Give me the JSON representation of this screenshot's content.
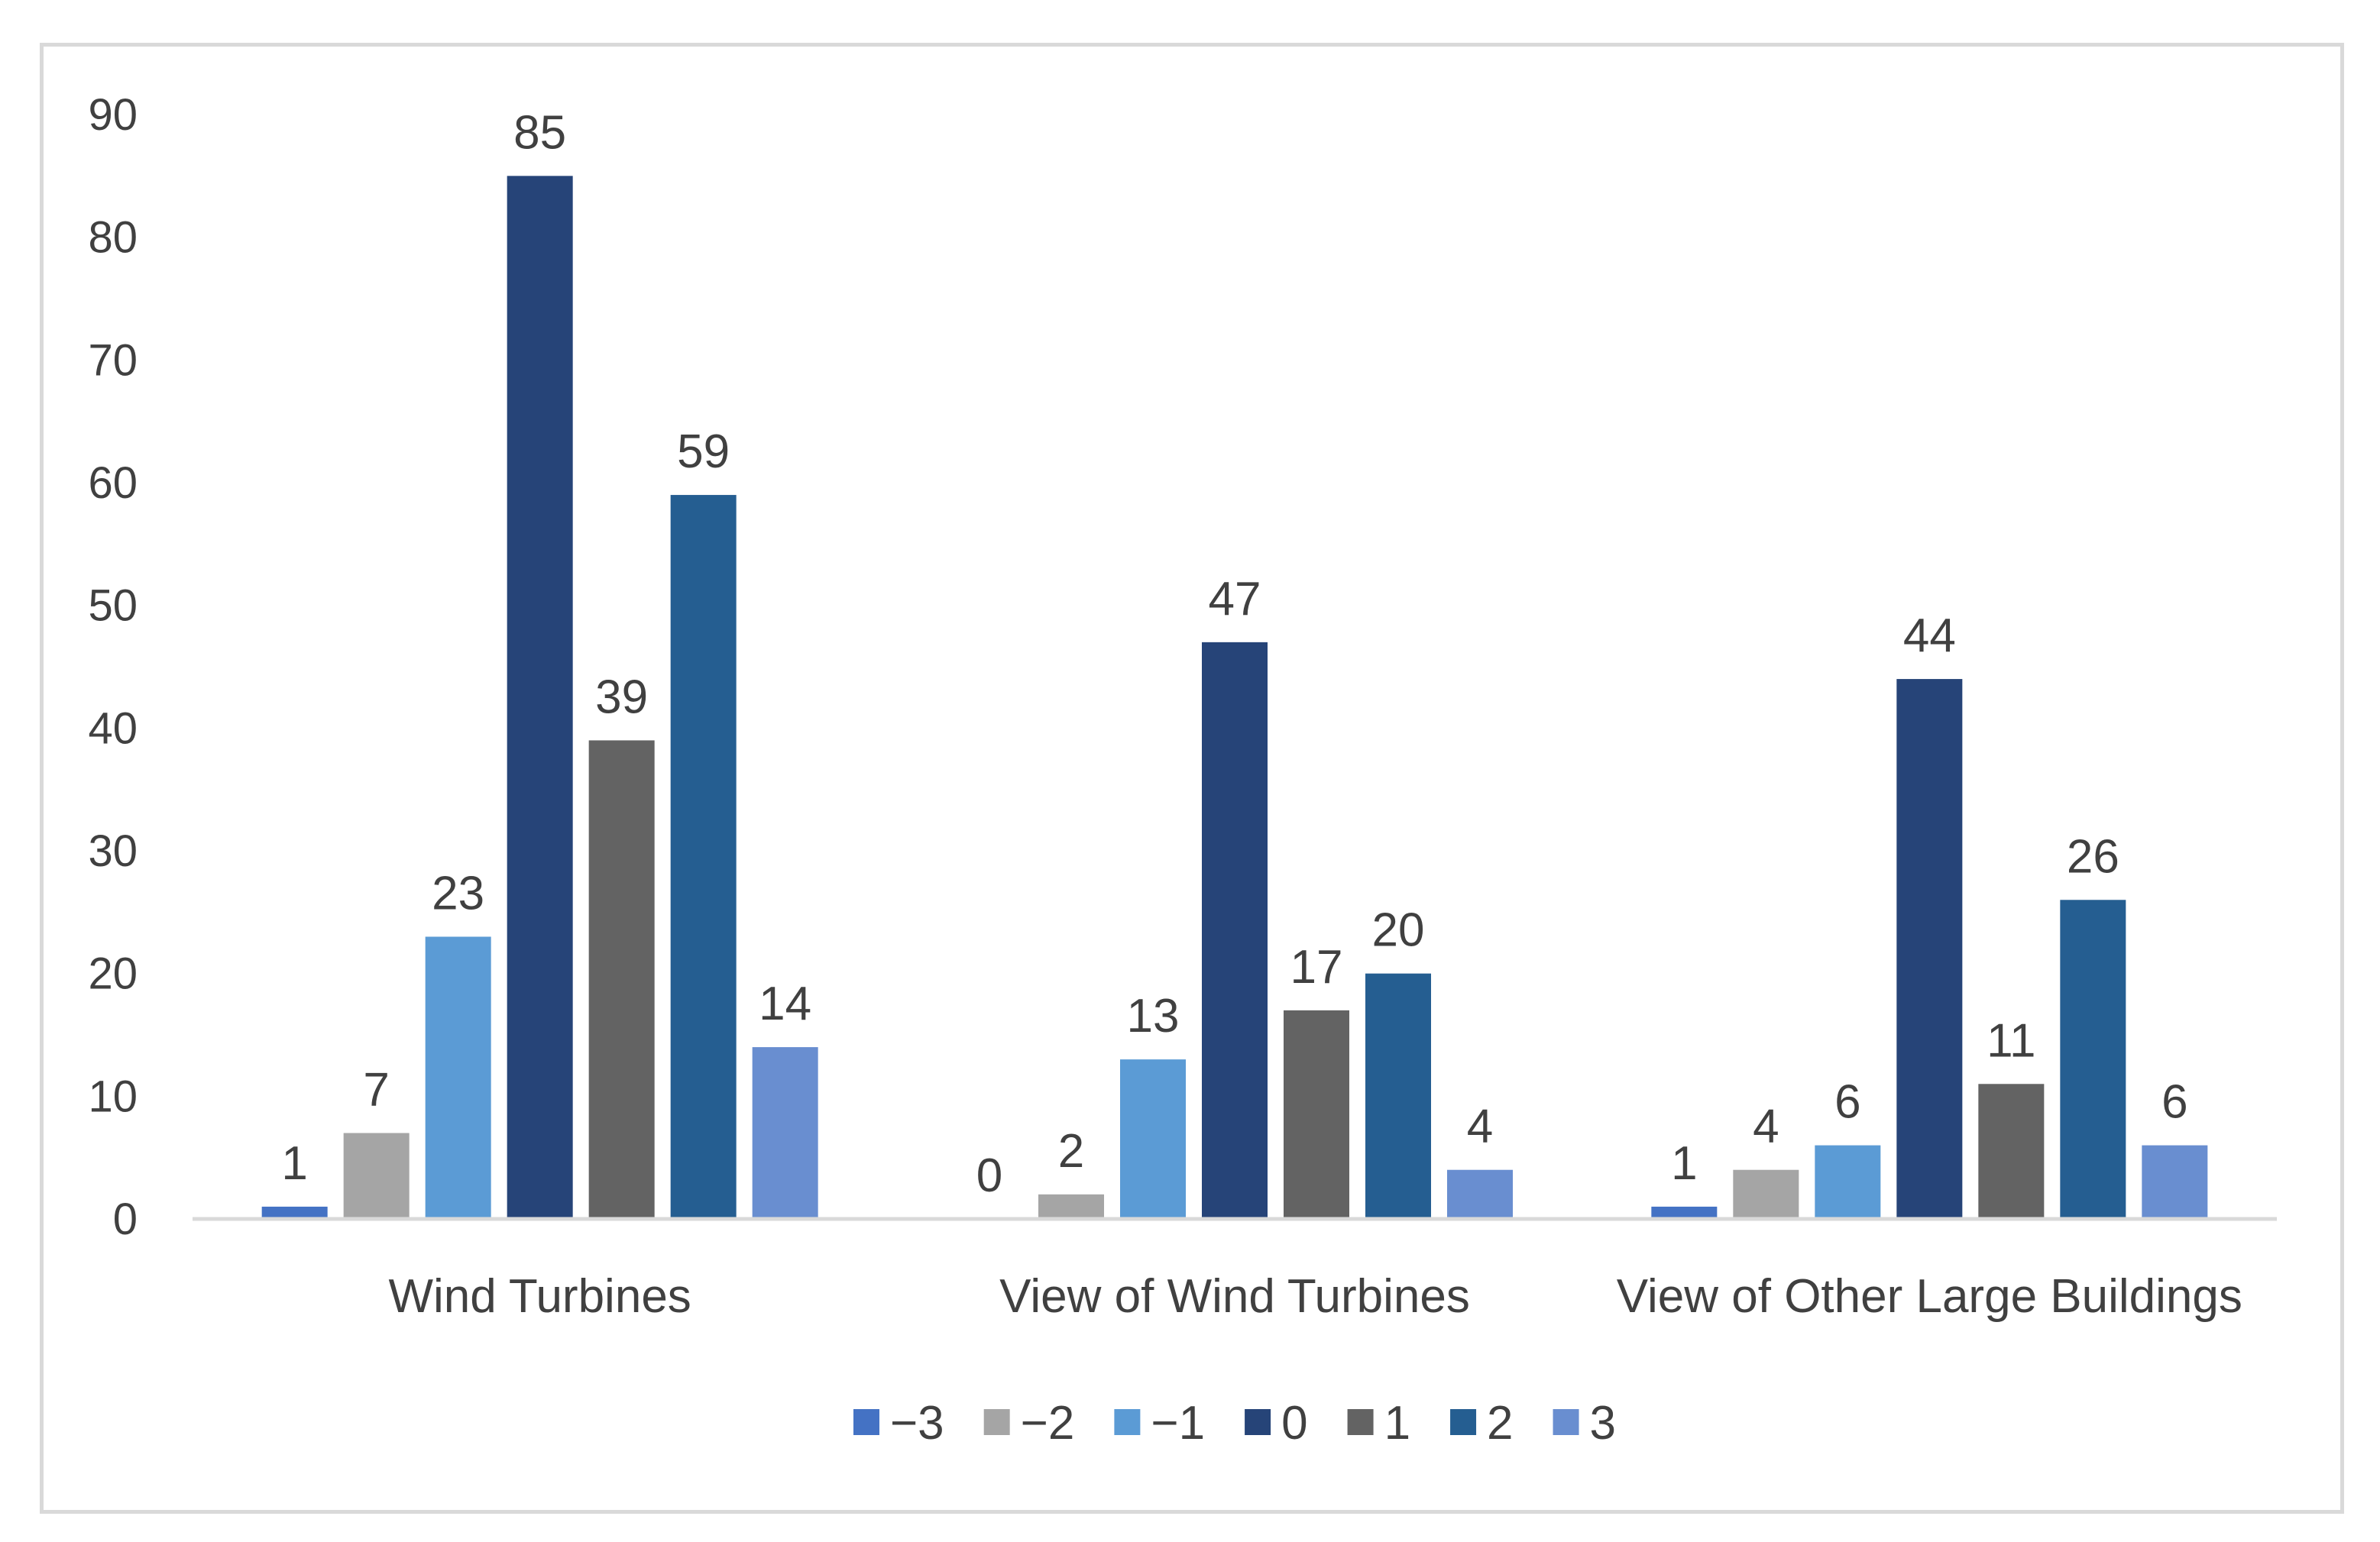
{
  "chart_data": {
    "type": "bar",
    "title": "",
    "xlabel": "",
    "ylabel": "",
    "ylim": [
      0,
      90
    ],
    "yticks": [
      0,
      10,
      20,
      30,
      40,
      50,
      60,
      70,
      80,
      90
    ],
    "grid": false,
    "legend_position": "bottom",
    "categories": [
      "Wind Turbines",
      "View of Wind Turbines",
      "View of Other Large Buildings"
    ],
    "series": [
      {
        "name": "−3",
        "color": "#4472c4",
        "values": [
          1,
          0,
          1
        ]
      },
      {
        "name": "−2",
        "color": "#a5a5a5",
        "values": [
          7,
          2,
          4
        ]
      },
      {
        "name": "−1",
        "color": "#5b9bd5",
        "values": [
          23,
          13,
          6
        ]
      },
      {
        "name": "0",
        "color": "#264478",
        "values": [
          85,
          47,
          44
        ]
      },
      {
        "name": "1",
        "color": "#636363",
        "values": [
          39,
          17,
          11
        ]
      },
      {
        "name": "2",
        "color": "#255e91",
        "values": [
          59,
          20,
          26
        ]
      },
      {
        "name": "3",
        "color": "#698ed0",
        "values": [
          14,
          4,
          6
        ]
      }
    ]
  }
}
